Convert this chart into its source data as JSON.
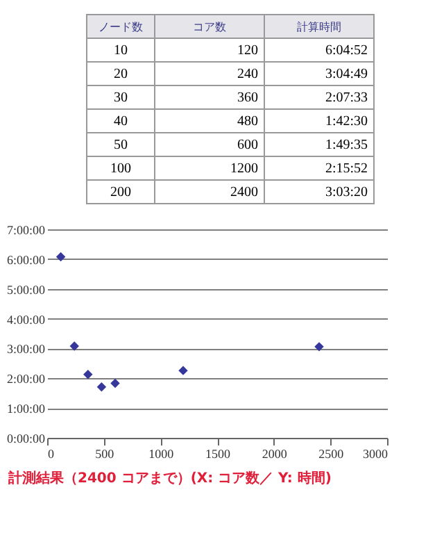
{
  "chart_data": {
    "type": "scatter",
    "x": [
      120,
      240,
      360,
      480,
      600,
      1200,
      2400
    ],
    "values": [
      6.08,
      3.08,
      2.13,
      1.71,
      1.83,
      2.26,
      3.06
    ],
    "color": "#35389a",
    "marker": "diamond",
    "xlim": [
      0,
      3000
    ],
    "xticks": [
      0,
      500,
      1000,
      1500,
      2000,
      2500,
      3000
    ],
    "ylim": [
      0,
      7
    ],
    "yticks": [
      {
        "value": 0,
        "label": "0:00:00"
      },
      {
        "value": 1,
        "label": "1:00:00"
      },
      {
        "value": 2,
        "label": "2:00:00"
      },
      {
        "value": 3,
        "label": "3:00:00"
      },
      {
        "value": 4,
        "label": "4:00:00"
      },
      {
        "value": 5,
        "label": "5:00:00"
      },
      {
        "value": 6,
        "label": "6:00:00"
      },
      {
        "value": 7,
        "label": "7:00:00"
      }
    ],
    "grid": "y",
    "annotations": [
      "ノード数",
      "コア数",
      "計算時間",
      "10",
      "120",
      "6:04:52",
      "20",
      "240",
      "3:04:49",
      "30",
      "360",
      "2:07:33",
      "40",
      "480",
      "1:42:30",
      "50",
      "600",
      "1:49:35",
      "100",
      "1200",
      "2:15:52",
      "200",
      "2400",
      "3:03:20",
      "計測結果（2400 コアまで）(X: コア数／ Y: 時間)"
    ]
  }
}
